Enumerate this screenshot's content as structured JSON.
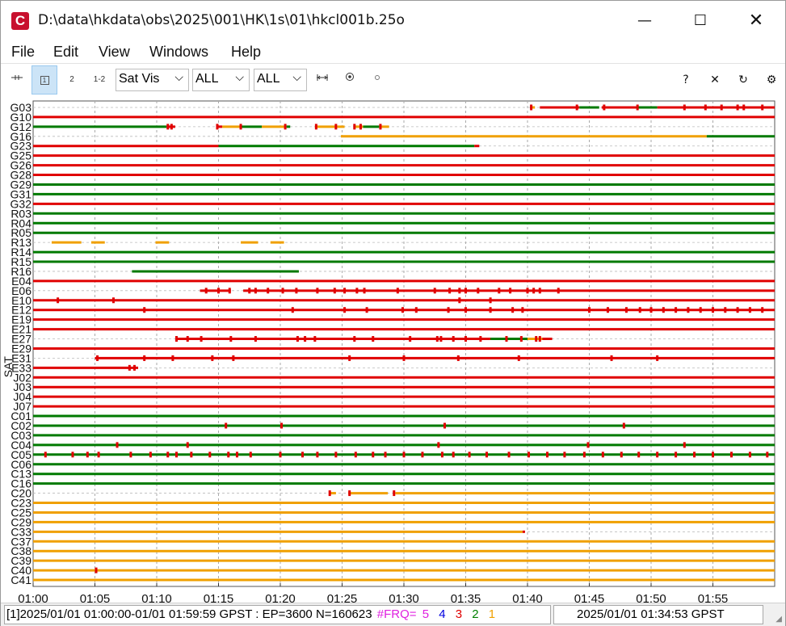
{
  "window": {
    "title": "D:\\data\\hkdata\\obs\\2025\\001\\HK\\1s\\01\\hkcl001b.25o",
    "app_icon": "C",
    "minimize_icon": "—",
    "maximize_icon": "☐",
    "close_icon": "✕"
  },
  "menu": [
    "File",
    "Edit",
    "View",
    "Windows",
    "Help"
  ],
  "toolbar": {
    "btn1": "1",
    "btn2": "2",
    "btn12": "1-2",
    "plot_type": "Sat Vis",
    "sys_filter": "ALL",
    "sat_filter": "ALL",
    "chevron": "⌵",
    "help": "?",
    "close": "✕",
    "reload": "↻",
    "options": "⚙"
  },
  "colors": {
    "red": "#e00000",
    "green": "#007a00",
    "orange": "#f0a000",
    "frq5": "#e020e0",
    "frq4": "#0000e0",
    "frq3": "#e00000",
    "frq2": "#008000",
    "frq1": "#f0a000"
  },
  "chart_data": {
    "type": "timeline",
    "x_tick_labels": [
      "01:00",
      "01:05",
      "01:10",
      "01:15",
      "01:20",
      "01:25",
      "01:30",
      "01:35",
      "01:40",
      "01:45",
      "01:50",
      "01:55"
    ],
    "x_range_minutes": [
      0,
      60
    ],
    "y_axis_label": "SAT",
    "satellites": [
      {
        "name": "G03",
        "segments": [
          [
            40.2,
            40.6,
            "orange"
          ],
          [
            41.0,
            44.2,
            "red"
          ],
          [
            44.2,
            45.8,
            "green"
          ],
          [
            46.0,
            48.8,
            "red"
          ],
          [
            48.8,
            50.5,
            "green"
          ],
          [
            50.5,
            60,
            "red"
          ]
        ]
      },
      {
        "name": "G10",
        "segments": [
          [
            0,
            60,
            "red"
          ]
        ]
      },
      {
        "name": "G12",
        "segments": [
          [
            0,
            10.8,
            "green"
          ],
          [
            10.8,
            11.5,
            "red"
          ],
          [
            14.9,
            15.3,
            "red"
          ],
          [
            15.3,
            16.7,
            "orange"
          ],
          [
            16.7,
            18.5,
            "green"
          ],
          [
            18.5,
            20.5,
            "orange"
          ],
          [
            20.5,
            20.8,
            "green"
          ],
          [
            22.8,
            25.2,
            "orange"
          ],
          [
            26.0,
            26.7,
            "orange"
          ],
          [
            26.7,
            28.0,
            "green"
          ],
          [
            28.0,
            28.8,
            "orange"
          ]
        ]
      },
      {
        "name": "G16",
        "segments": [
          [
            24.9,
            54.5,
            "orange"
          ],
          [
            54.5,
            60,
            "green"
          ]
        ]
      },
      {
        "name": "G23",
        "segments": [
          [
            0,
            15,
            "red"
          ],
          [
            15,
            35.7,
            "green"
          ],
          [
            35.7,
            36.1,
            "red"
          ]
        ]
      },
      {
        "name": "G25",
        "segments": [
          [
            0,
            60,
            "red"
          ]
        ]
      },
      {
        "name": "G26",
        "segments": [
          [
            0,
            60,
            "red"
          ]
        ]
      },
      {
        "name": "G28",
        "segments": [
          [
            0,
            60,
            "red"
          ]
        ]
      },
      {
        "name": "G29",
        "segments": [
          [
            0,
            60,
            "green"
          ]
        ]
      },
      {
        "name": "G31",
        "segments": [
          [
            0,
            60,
            "green"
          ]
        ]
      },
      {
        "name": "G32",
        "segments": [
          [
            0,
            60,
            "red"
          ]
        ]
      },
      {
        "name": "R03",
        "segments": [
          [
            0,
            60,
            "green"
          ]
        ]
      },
      {
        "name": "R04",
        "segments": [
          [
            0,
            60,
            "green"
          ]
        ]
      },
      {
        "name": "R05",
        "segments": [
          [
            0,
            60,
            "green"
          ]
        ]
      },
      {
        "name": "R13",
        "segments": [
          [
            1.5,
            3.9,
            "orange"
          ],
          [
            4.7,
            5.8,
            "orange"
          ],
          [
            9.9,
            11.0,
            "orange"
          ],
          [
            16.8,
            18.2,
            "orange"
          ],
          [
            19.2,
            20.3,
            "orange"
          ]
        ]
      },
      {
        "name": "R14",
        "segments": [
          [
            0,
            60,
            "green"
          ]
        ]
      },
      {
        "name": "R15",
        "segments": [
          [
            0,
            60,
            "green"
          ]
        ]
      },
      {
        "name": "R16",
        "segments": [
          [
            8.0,
            21.5,
            "green"
          ]
        ]
      },
      {
        "name": "E04",
        "segments": [
          [
            0,
            60,
            "red"
          ]
        ]
      },
      {
        "name": "E06",
        "segments": [
          [
            13.5,
            16.0,
            "red"
          ],
          [
            17.0,
            60,
            "red"
          ]
        ]
      },
      {
        "name": "E10",
        "segments": [
          [
            0,
            60,
            "red"
          ]
        ]
      },
      {
        "name": "E12",
        "segments": [
          [
            0,
            60,
            "red"
          ]
        ]
      },
      {
        "name": "E19",
        "segments": [
          [
            0,
            60,
            "red"
          ]
        ]
      },
      {
        "name": "E21",
        "segments": [
          [
            0,
            60,
            "red"
          ]
        ]
      },
      {
        "name": "E27",
        "segments": [
          [
            11.5,
            42.0,
            "red"
          ],
          [
            37.0,
            40.0,
            "green"
          ],
          [
            40.0,
            41.2,
            "orange"
          ]
        ]
      },
      {
        "name": "E29",
        "segments": [
          [
            0,
            60,
            "red"
          ]
        ]
      },
      {
        "name": "E31",
        "segments": [
          [
            5.0,
            60,
            "red"
          ]
        ]
      },
      {
        "name": "E33",
        "segments": [
          [
            0,
            8.5,
            "red"
          ]
        ]
      },
      {
        "name": "J02",
        "segments": [
          [
            0,
            60,
            "red"
          ]
        ]
      },
      {
        "name": "J03",
        "segments": [
          [
            0,
            60,
            "red"
          ]
        ]
      },
      {
        "name": "J04",
        "segments": [
          [
            0,
            60,
            "red"
          ]
        ]
      },
      {
        "name": "J07",
        "segments": [
          [
            0,
            60,
            "red"
          ]
        ]
      },
      {
        "name": "C01",
        "segments": [
          [
            0,
            60,
            "green"
          ]
        ]
      },
      {
        "name": "C02",
        "segments": [
          [
            0,
            60,
            "green"
          ]
        ]
      },
      {
        "name": "C03",
        "segments": [
          [
            0,
            60,
            "green"
          ]
        ]
      },
      {
        "name": "C04",
        "segments": [
          [
            0,
            60,
            "green"
          ]
        ]
      },
      {
        "name": "C05",
        "segments": [
          [
            0,
            60,
            "green"
          ]
        ]
      },
      {
        "name": "C06",
        "segments": [
          [
            0,
            60,
            "green"
          ]
        ]
      },
      {
        "name": "C13",
        "segments": [
          [
            0,
            60,
            "green"
          ]
        ]
      },
      {
        "name": "C16",
        "segments": [
          [
            0,
            60,
            "green"
          ]
        ]
      },
      {
        "name": "C20",
        "segments": [
          [
            24.0,
            24.5,
            "orange"
          ],
          [
            25.5,
            28.7,
            "orange"
          ],
          [
            29.3,
            60,
            "orange"
          ]
        ]
      },
      {
        "name": "C23",
        "segments": [
          [
            0,
            60,
            "orange"
          ]
        ]
      },
      {
        "name": "C25",
        "segments": [
          [
            0,
            60,
            "orange"
          ]
        ]
      },
      {
        "name": "C29",
        "segments": [
          [
            0,
            60,
            "orange"
          ]
        ]
      },
      {
        "name": "C33",
        "segments": [
          [
            0,
            39.6,
            "orange"
          ],
          [
            39.6,
            39.8,
            "red"
          ]
        ]
      },
      {
        "name": "C37",
        "segments": [
          [
            0,
            60,
            "orange"
          ]
        ]
      },
      {
        "name": "C38",
        "segments": [
          [
            0,
            60,
            "orange"
          ]
        ]
      },
      {
        "name": "C39",
        "segments": [
          [
            0,
            60,
            "orange"
          ]
        ]
      },
      {
        "name": "C40",
        "segments": [
          [
            0,
            60,
            "orange"
          ]
        ]
      },
      {
        "name": "C41",
        "segments": [
          [
            0,
            60,
            "orange"
          ]
        ]
      }
    ],
    "event_ticks": {
      "G03": [
        40.3,
        44.0,
        46.2,
        48.9,
        52.7,
        54.4,
        55.7,
        57.0,
        57.5,
        59.0
      ],
      "G12": [
        10.9,
        11.2,
        14.9,
        16.8,
        20.4,
        22.9,
        24.5,
        26.0,
        26.5,
        28.1
      ],
      "E06": [
        14.0,
        15.0,
        15.9,
        17.5,
        18.0,
        19.0,
        20.2,
        21.3,
        23.0,
        24.4,
        25.2,
        26.2,
        26.8,
        29.5,
        32.5,
        33.7,
        34.5,
        35.0,
        36.0,
        37.7,
        38.6,
        40.0,
        40.5,
        41.0,
        42.5
      ],
      "E10": [
        2.0,
        6.5,
        34.5,
        37.0
      ],
      "E12": [
        9.0,
        21.0,
        25.2,
        27.0,
        29.9,
        31.0,
        33.6,
        35.0,
        37.0,
        38.8,
        39.6,
        45.0,
        46.5,
        48.0,
        49.1,
        50.0,
        51.0,
        52.0,
        53.0,
        54.0,
        55.0,
        56.0,
        57.0,
        58.0,
        59.0
      ],
      "E27": [
        11.6,
        12.5,
        13.6,
        16.0,
        18.0,
        21.4,
        22.0,
        22.8,
        26.0,
        27.5,
        30.5,
        32.7,
        33.0,
        34.0,
        35.0,
        36.2,
        38.3,
        39.5,
        40.7,
        41.0
      ],
      "E31": [
        5.2,
        9.0,
        11.3,
        14.5,
        16.2,
        25.6,
        30.0,
        34.4,
        39.3,
        46.8,
        50.5
      ],
      "E33": [
        7.8,
        8.2
      ],
      "C02": [
        15.6,
        20.1,
        33.3,
        47.8
      ],
      "C04": [
        6.8,
        12.5,
        32.8,
        44.9,
        52.7
      ],
      "C05": [
        1.0,
        3.2,
        4.4,
        5.3,
        7.9,
        9.5,
        10.9,
        11.6,
        12.8,
        14.3,
        15.8,
        16.5,
        17.6,
        20.0,
        21.8,
        23.0,
        24.5,
        26.1,
        27.5,
        28.5,
        30.0,
        31.5,
        33.1,
        34.0,
        35.3,
        36.7,
        38.5,
        40.1,
        41.6,
        43.0,
        44.6,
        46.1,
        47.6,
        49.0,
        50.5,
        52.0,
        53.5,
        55.0,
        56.5,
        58.0,
        59.4
      ],
      "C20": [
        24.0,
        25.6,
        29.2
      ],
      "C40": [
        5.1
      ]
    }
  },
  "status": {
    "left_text": "[1]2025/01/01 01:00:00-01/01 01:59:59 GPST : EP=3600 N=160623",
    "frq_label": "#FRQ=",
    "frq_vals": [
      "5",
      "4",
      "3",
      "2",
      "1"
    ],
    "right_text": "2025/01/01 01:34:53 GPST"
  }
}
